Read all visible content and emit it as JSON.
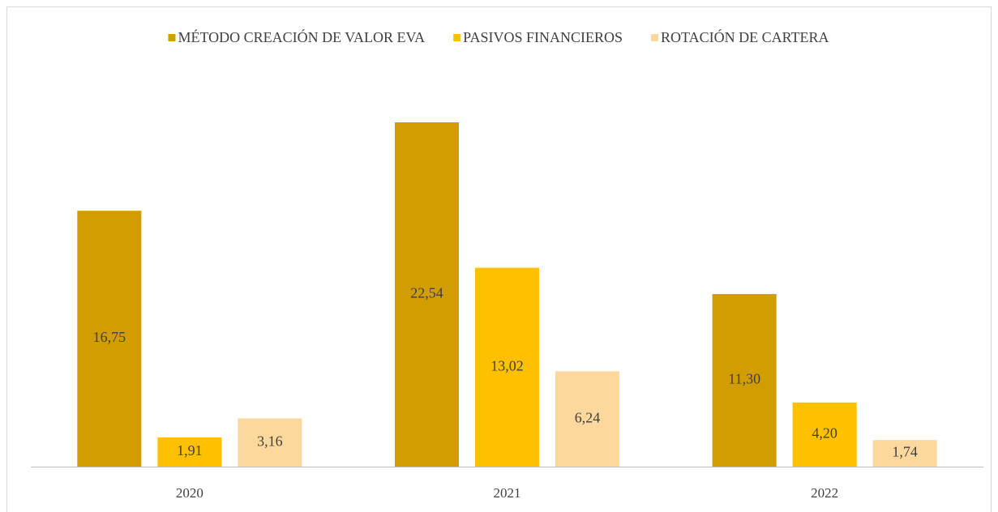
{
  "chart_data": {
    "type": "bar",
    "categories": [
      "2020",
      "2021",
      "2022"
    ],
    "series": [
      {
        "name": "MÉTODO CREACIÓN DE VALOR EVA",
        "color": "#D19D00",
        "values": [
          16.75,
          22.54,
          11.3
        ],
        "value_labels": [
          "16,75",
          "22,54",
          "11,30"
        ]
      },
      {
        "name": "PASIVOS FINANCIEROS",
        "color": "#FFC000",
        "values": [
          1.91,
          13.02,
          4.2
        ],
        "value_labels": [
          "1,91",
          "13,02",
          "4,20"
        ]
      },
      {
        "name": "ROTACIÓN DE CARTERA",
        "color": "#FDD89C",
        "values": [
          3.16,
          6.24,
          1.74
        ],
        "value_labels": [
          "3,16",
          "6,24",
          "1,74"
        ]
      }
    ],
    "legend": "top"
  }
}
